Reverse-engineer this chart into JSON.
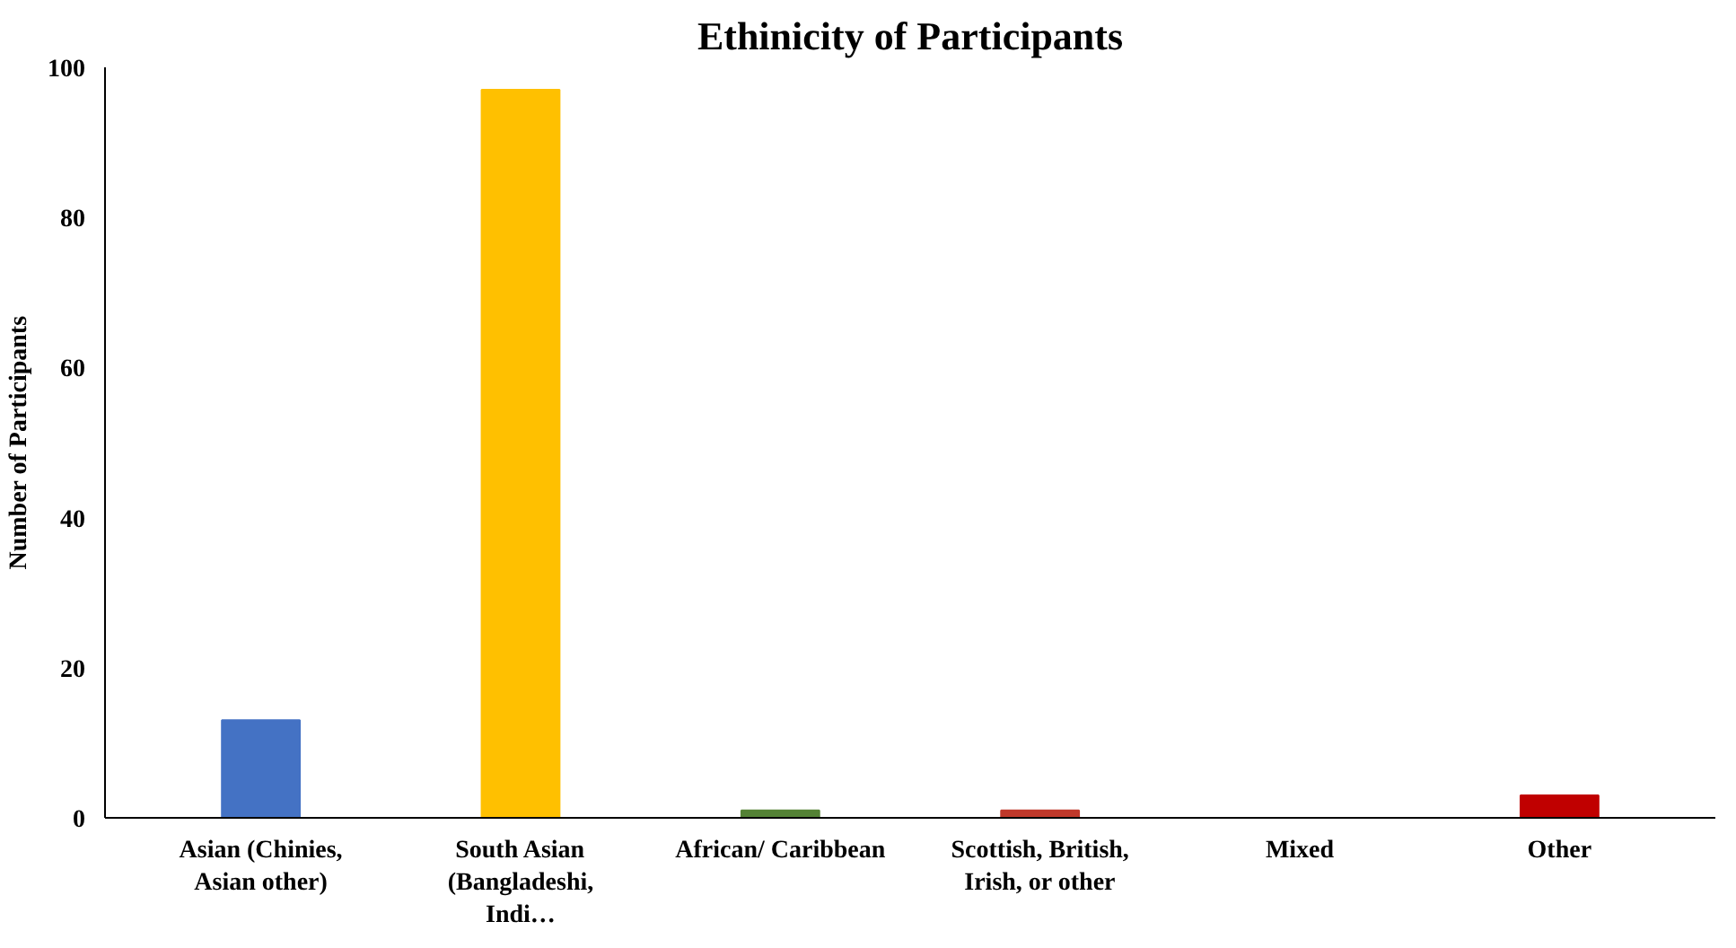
{
  "chart_data": {
    "type": "bar",
    "title": "Ethinicity of Participants",
    "ylabel": "Number of Participants",
    "categories": [
      "Asian (Chinies, Asian other)",
      "South Asian (Bangladeshi, Indi…",
      "African/ Caribbean",
      "Scottish, British, Irish, or other",
      "Mixed",
      "Other"
    ],
    "values": [
      13,
      97,
      1,
      1,
      0,
      3
    ],
    "colors": [
      "#4472c4",
      "#ffc000",
      "#548235",
      "#c0392b",
      "#7f7f7f",
      "#c00000"
    ],
    "ylim": [
      0,
      100
    ],
    "yticks": [
      0,
      20,
      40,
      60,
      80,
      100
    ],
    "grid": false
  }
}
